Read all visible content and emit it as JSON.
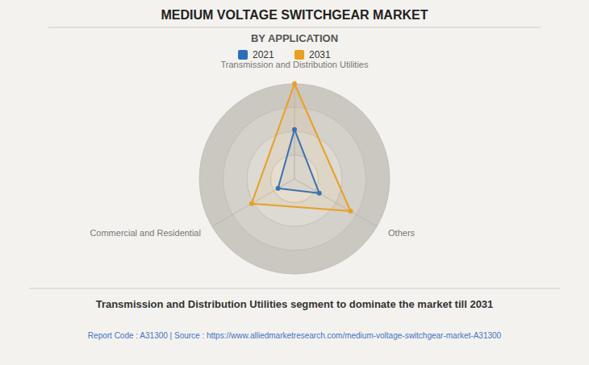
{
  "chart_data": {
    "type": "radar",
    "title": "MEDIUM VOLTAGE SWITCHGEAR MARKET",
    "subtitle": "BY APPLICATION",
    "categories": [
      "Transmission and Distribution Utilities",
      "Others",
      "Commercial and Residential"
    ],
    "series": [
      {
        "name": "2021",
        "color": "#2E6DBD",
        "values": [
          0.52,
          0.3,
          0.2
        ]
      },
      {
        "name": "2031",
        "color": "#E8A020",
        "values": [
          1.0,
          0.68,
          0.52
        ]
      }
    ],
    "ylim": [
      0,
      1
    ],
    "yticks": [
      0.25,
      0.5,
      0.75,
      1
    ],
    "tick_labels": false,
    "grid": true,
    "legend": "top",
    "annotations": [
      "Transmission and Distribution Utilities segment to dominate the market till 2031",
      "Report Code : A31300  |  Source : https://www.alliedmarketresearch.com/medium-voltage-switchgear-market-A31300"
    ]
  }
}
